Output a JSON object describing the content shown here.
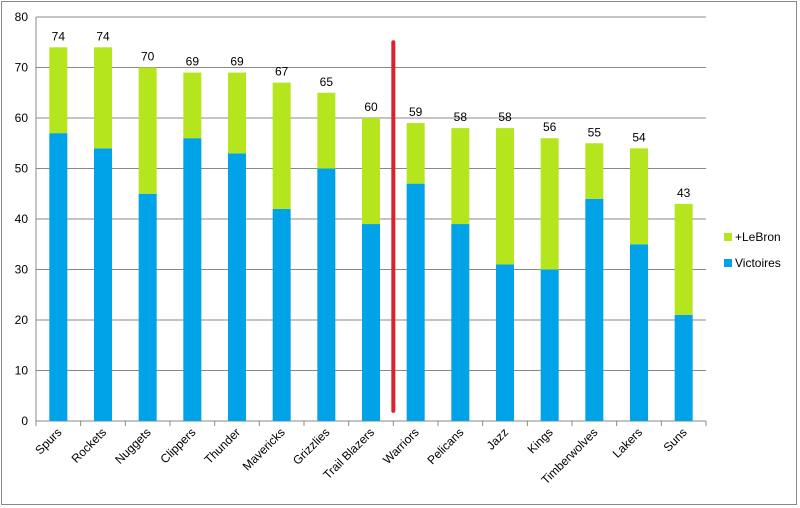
{
  "chart_data": {
    "type": "bar",
    "stacked": true,
    "categories": [
      "Spurs",
      "Rockets",
      "Nuggets",
      "Clippers",
      "Thunder",
      "Mavericks",
      "Grizzlies",
      "Trail Blazers",
      "Warriors",
      "Pelicans",
      "Jazz",
      "Kings",
      "Timberwolves",
      "Lakers",
      "Suns"
    ],
    "series": [
      {
        "name": "Victoires",
        "color": "#00a2e8",
        "values": [
          57,
          54,
          45,
          56,
          53,
          42,
          50,
          39,
          47,
          39,
          31,
          30,
          44,
          35,
          21
        ]
      },
      {
        "name": "+LeBron",
        "color": "#b5e61d",
        "values": [
          17,
          20,
          25,
          13,
          16,
          25,
          15,
          21,
          12,
          19,
          27,
          26,
          11,
          19,
          22
        ]
      }
    ],
    "totals": [
      74,
      74,
      70,
      69,
      69,
      67,
      65,
      60,
      59,
      58,
      58,
      56,
      55,
      54,
      43
    ],
    "ylim": [
      0,
      80
    ],
    "yticks": [
      0,
      10,
      20,
      30,
      40,
      50,
      60,
      70,
      80
    ],
    "grid": true,
    "legend": "right",
    "annotation": {
      "type": "vertical-line",
      "color": "#e0202a",
      "between": [
        "Trail Blazers",
        "Warriors"
      ]
    }
  }
}
